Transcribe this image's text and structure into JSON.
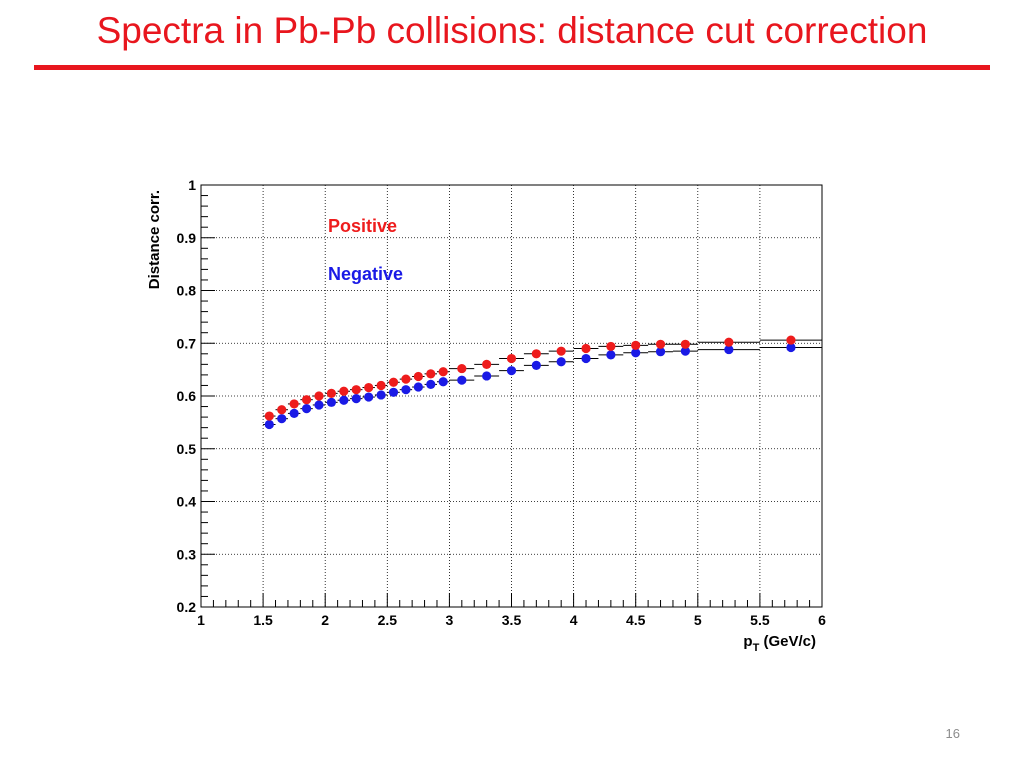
{
  "slide": {
    "title": "Spectra in Pb-Pb collisions: distance cut correction",
    "page_number": "16"
  },
  "colors": {
    "title": "#e8161e",
    "positive": "#ee1c1c",
    "negative": "#1a1ae6"
  },
  "chart_data": {
    "type": "scatter",
    "title": "",
    "xlabel_main": "p",
    "xlabel_sub": "T",
    "xlabel_unit": "(GeV/c)",
    "ylabel": "Distance corr.",
    "xlim": [
      1,
      6
    ],
    "ylim": [
      0.2,
      1.0
    ],
    "grid": true,
    "legend_placement": "top-left",
    "x_ticks": [
      "1",
      "1.5",
      "2",
      "2.5",
      "3",
      "3.5",
      "4",
      "4.5",
      "5",
      "5.5",
      "6"
    ],
    "y_ticks": [
      "0.2",
      "0.3",
      "0.4",
      "0.5",
      "0.6",
      "0.7",
      "0.8",
      "0.9",
      "1"
    ],
    "series": [
      {
        "name": "Positive",
        "color": "#ee1c1c",
        "points": [
          [
            1.55,
            0.562,
            0.05
          ],
          [
            1.65,
            0.574,
            0.05
          ],
          [
            1.75,
            0.585,
            0.05
          ],
          [
            1.85,
            0.593,
            0.05
          ],
          [
            1.95,
            0.6,
            0.05
          ],
          [
            2.05,
            0.605,
            0.05
          ],
          [
            2.15,
            0.609,
            0.05
          ],
          [
            2.25,
            0.612,
            0.05
          ],
          [
            2.35,
            0.616,
            0.05
          ],
          [
            2.45,
            0.62,
            0.05
          ],
          [
            2.55,
            0.626,
            0.05
          ],
          [
            2.65,
            0.632,
            0.05
          ],
          [
            2.75,
            0.637,
            0.05
          ],
          [
            2.85,
            0.642,
            0.05
          ],
          [
            2.95,
            0.646,
            0.05
          ],
          [
            3.1,
            0.652,
            0.1
          ],
          [
            3.3,
            0.66,
            0.1
          ],
          [
            3.5,
            0.671,
            0.1
          ],
          [
            3.7,
            0.68,
            0.1
          ],
          [
            3.9,
            0.685,
            0.1
          ],
          [
            4.1,
            0.69,
            0.1
          ],
          [
            4.3,
            0.694,
            0.1
          ],
          [
            4.5,
            0.696,
            0.1
          ],
          [
            4.7,
            0.698,
            0.1
          ],
          [
            4.9,
            0.698,
            0.1
          ],
          [
            5.25,
            0.702,
            0.25
          ],
          [
            5.75,
            0.706,
            0.25
          ]
        ]
      },
      {
        "name": "Negative",
        "color": "#1a1ae6",
        "points": [
          [
            1.55,
            0.546,
            0.05
          ],
          [
            1.65,
            0.557,
            0.05
          ],
          [
            1.75,
            0.567,
            0.05
          ],
          [
            1.85,
            0.576,
            0.05
          ],
          [
            1.95,
            0.583,
            0.05
          ],
          [
            2.05,
            0.588,
            0.05
          ],
          [
            2.15,
            0.592,
            0.05
          ],
          [
            2.25,
            0.595,
            0.05
          ],
          [
            2.35,
            0.598,
            0.05
          ],
          [
            2.45,
            0.602,
            0.05
          ],
          [
            2.55,
            0.607,
            0.05
          ],
          [
            2.65,
            0.612,
            0.05
          ],
          [
            2.75,
            0.617,
            0.05
          ],
          [
            2.85,
            0.622,
            0.05
          ],
          [
            2.95,
            0.627,
            0.05
          ],
          [
            3.1,
            0.63,
            0.1
          ],
          [
            3.3,
            0.638,
            0.1
          ],
          [
            3.5,
            0.648,
            0.1
          ],
          [
            3.7,
            0.658,
            0.1
          ],
          [
            3.9,
            0.665,
            0.1
          ],
          [
            4.1,
            0.671,
            0.1
          ],
          [
            4.3,
            0.678,
            0.1
          ],
          [
            4.5,
            0.682,
            0.1
          ],
          [
            4.7,
            0.684,
            0.1
          ],
          [
            4.9,
            0.685,
            0.1
          ],
          [
            5.25,
            0.688,
            0.25
          ],
          [
            5.75,
            0.692,
            0.25
          ]
        ]
      }
    ]
  }
}
